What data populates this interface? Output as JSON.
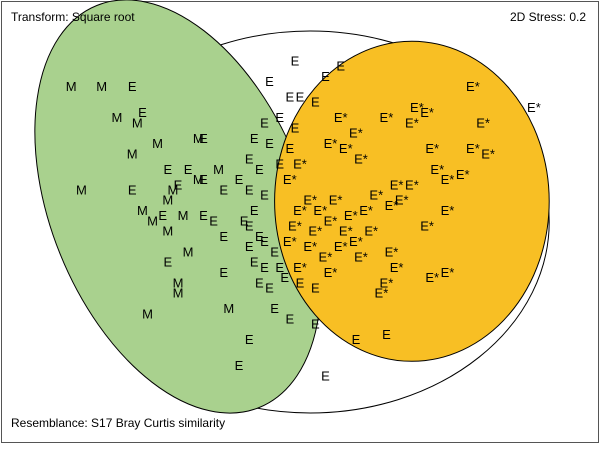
{
  "chart_data": {
    "type": "scatter",
    "annotations": {
      "transform": "Transform: Square root",
      "stress": "2D Stress: 0.2",
      "resemblance": "Resemblance: S17 Bray Curtis similarity"
    },
    "colors": {
      "M": "#a9d18e",
      "E*": "#f8bf24",
      "all": "#ffffff",
      "outline": "#000000"
    },
    "groups": [
      {
        "name": "M",
        "fill": "#a9d18e"
      },
      {
        "name": "E*",
        "fill": "#f8bf24"
      },
      {
        "name": "E",
        "fill": "none"
      }
    ],
    "points": [
      {
        "label": "M",
        "x": -2.3,
        "y": 1.4
      },
      {
        "label": "M",
        "x": -2.0,
        "y": 1.4
      },
      {
        "label": "E",
        "x": -1.7,
        "y": 1.4
      },
      {
        "label": "M",
        "x": -1.85,
        "y": 1.1
      },
      {
        "label": "E",
        "x": -1.6,
        "y": 1.15
      },
      {
        "label": "M",
        "x": -1.65,
        "y": 1.05
      },
      {
        "label": "M",
        "x": -1.45,
        "y": 0.85
      },
      {
        "label": "M",
        "x": -1.05,
        "y": 0.9
      },
      {
        "label": "E",
        "x": -1.0,
        "y": 0.9
      },
      {
        "label": "M",
        "x": -1.7,
        "y": 0.75
      },
      {
        "label": "E",
        "x": -1.35,
        "y": 0.6
      },
      {
        "label": "E",
        "x": -1.15,
        "y": 0.6
      },
      {
        "label": "M",
        "x": -0.85,
        "y": 0.6
      },
      {
        "label": "M",
        "x": -1.05,
        "y": 0.5
      },
      {
        "label": "E",
        "x": -1.0,
        "y": 0.5
      },
      {
        "label": "E",
        "x": -0.8,
        "y": 0.4
      },
      {
        "label": "M",
        "x": -2.2,
        "y": 0.4
      },
      {
        "label": "E",
        "x": -1.7,
        "y": 0.4
      },
      {
        "label": "M",
        "x": -1.3,
        "y": 0.4
      },
      {
        "label": "E",
        "x": -1.25,
        "y": 0.45
      },
      {
        "label": "M",
        "x": -1.35,
        "y": 0.3
      },
      {
        "label": "M",
        "x": -1.6,
        "y": 0.2
      },
      {
        "label": "E",
        "x": -1.4,
        "y": 0.15
      },
      {
        "label": "M",
        "x": -1.5,
        "y": 0.1
      },
      {
        "label": "M",
        "x": -1.2,
        "y": 0.15
      },
      {
        "label": "E",
        "x": -1.0,
        "y": 0.15
      },
      {
        "label": "E",
        "x": -0.9,
        "y": 0.1
      },
      {
        "label": "M",
        "x": -1.35,
        "y": 0.0
      },
      {
        "label": "E",
        "x": -0.55,
        "y": 0.05
      },
      {
        "label": "E",
        "x": -0.8,
        "y": -0.05
      },
      {
        "label": "M",
        "x": -1.15,
        "y": -0.2
      },
      {
        "label": "E",
        "x": -1.35,
        "y": -0.3
      },
      {
        "label": "M",
        "x": -1.25,
        "y": -0.5
      },
      {
        "label": "E",
        "x": -0.8,
        "y": -0.4
      },
      {
        "label": "M",
        "x": -1.25,
        "y": -0.6
      },
      {
        "label": "M",
        "x": -1.55,
        "y": -0.8
      },
      {
        "label": "M",
        "x": -0.75,
        "y": -0.75
      },
      {
        "label": "E",
        "x": -0.55,
        "y": -1.05
      },
      {
        "label": "E",
        "x": -0.65,
        "y": -1.3
      },
      {
        "label": "E",
        "x": -0.1,
        "y": 1.65
      },
      {
        "label": "E",
        "x": 0.35,
        "y": 1.6
      },
      {
        "label": "E",
        "x": 0.2,
        "y": 1.5
      },
      {
        "label": "E",
        "x": -0.35,
        "y": 1.45
      },
      {
        "label": "E",
        "x": -0.15,
        "y": 1.3
      },
      {
        "label": "E",
        "x": -0.05,
        "y": 1.3
      },
      {
        "label": "E",
        "x": 0.1,
        "y": 1.25
      },
      {
        "label": "E",
        "x": -0.4,
        "y": 1.05
      },
      {
        "label": "E",
        "x": -0.25,
        "y": 1.1
      },
      {
        "label": "E",
        "x": -0.1,
        "y": 1.0
      },
      {
        "label": "E",
        "x": -0.5,
        "y": 0.9
      },
      {
        "label": "E",
        "x": -0.35,
        "y": 0.85
      },
      {
        "label": "E",
        "x": -0.15,
        "y": 0.8
      },
      {
        "label": "E",
        "x": -0.55,
        "y": 0.7
      },
      {
        "label": "E",
        "x": -0.45,
        "y": 0.6
      },
      {
        "label": "E",
        "x": -0.25,
        "y": 0.65
      },
      {
        "label": "E",
        "x": -0.65,
        "y": 0.5
      },
      {
        "label": "E",
        "x": -0.55,
        "y": 0.4
      },
      {
        "label": "E",
        "x": -0.4,
        "y": 0.35
      },
      {
        "label": "E",
        "x": -0.5,
        "y": 0.2
      },
      {
        "label": "E",
        "x": -0.6,
        "y": 0.1
      },
      {
        "label": "E",
        "x": -0.45,
        "y": -0.05
      },
      {
        "label": "E",
        "x": -0.55,
        "y": -0.15
      },
      {
        "label": "E",
        "x": -0.4,
        "y": -0.1
      },
      {
        "label": "E",
        "x": -0.3,
        "y": -0.2
      },
      {
        "label": "E",
        "x": -0.5,
        "y": -0.3
      },
      {
        "label": "E",
        "x": -0.4,
        "y": -0.35
      },
      {
        "label": "E",
        "x": -0.25,
        "y": -0.35
      },
      {
        "label": "E",
        "x": -0.45,
        "y": -0.5
      },
      {
        "label": "E",
        "x": -0.35,
        "y": -0.55
      },
      {
        "label": "E",
        "x": -0.2,
        "y": -0.45
      },
      {
        "label": "E",
        "x": -0.05,
        "y": -0.5
      },
      {
        "label": "E",
        "x": 0.1,
        "y": -0.55
      },
      {
        "label": "E",
        "x": -0.3,
        "y": -0.75
      },
      {
        "label": "E",
        "x": -0.15,
        "y": -0.85
      },
      {
        "label": "E",
        "x": 0.1,
        "y": -0.9
      },
      {
        "label": "E",
        "x": 0.5,
        "y": -1.05
      },
      {
        "label": "E",
        "x": 0.8,
        "y": -1.0
      },
      {
        "label": "E",
        "x": 0.2,
        "y": -1.4
      },
      {
        "label": "E*",
        "x": 1.65,
        "y": 1.4
      },
      {
        "label": "E*",
        "x": 2.25,
        "y": 1.2
      },
      {
        "label": "E*",
        "x": 1.1,
        "y": 1.2
      },
      {
        "label": "E*",
        "x": 1.2,
        "y": 1.15
      },
      {
        "label": "E*",
        "x": 0.8,
        "y": 1.1
      },
      {
        "label": "E*",
        "x": 1.05,
        "y": 1.05
      },
      {
        "label": "E*",
        "x": 1.75,
        "y": 1.05
      },
      {
        "label": "E*",
        "x": 0.35,
        "y": 1.1
      },
      {
        "label": "E*",
        "x": 0.5,
        "y": 0.95
      },
      {
        "label": "E*",
        "x": 0.25,
        "y": 0.85
      },
      {
        "label": "E*",
        "x": 0.4,
        "y": 0.8
      },
      {
        "label": "E*",
        "x": 1.25,
        "y": 0.8
      },
      {
        "label": "E*",
        "x": 1.65,
        "y": 0.8
      },
      {
        "label": "E*",
        "x": 1.8,
        "y": 0.75
      },
      {
        "label": "E*",
        "x": -0.05,
        "y": 0.65
      },
      {
        "label": "E*",
        "x": 0.55,
        "y": 0.7
      },
      {
        "label": "E*",
        "x": 1.3,
        "y": 0.6
      },
      {
        "label": "E*",
        "x": 1.55,
        "y": 0.55
      },
      {
        "label": "E*",
        "x": 1.4,
        "y": 0.5
      },
      {
        "label": "E*",
        "x": -0.15,
        "y": 0.5
      },
      {
        "label": "E*",
        "x": 1.05,
        "y": 0.45
      },
      {
        "label": "E*",
        "x": 0.9,
        "y": 0.45
      },
      {
        "label": "E*",
        "x": 0.7,
        "y": 0.35
      },
      {
        "label": "E*",
        "x": 0.95,
        "y": 0.3
      },
      {
        "label": "E*",
        "x": 0.3,
        "y": 0.3
      },
      {
        "label": "E*",
        "x": 0.05,
        "y": 0.3
      },
      {
        "label": "E*",
        "x": 0.85,
        "y": 0.25
      },
      {
        "label": "E*",
        "x": -0.05,
        "y": 0.2
      },
      {
        "label": "E*",
        "x": 0.15,
        "y": 0.2
      },
      {
        "label": "E*",
        "x": 0.45,
        "y": 0.15
      },
      {
        "label": "E*",
        "x": 0.6,
        "y": 0.2
      },
      {
        "label": "E*",
        "x": 0.25,
        "y": 0.1
      },
      {
        "label": "E*",
        "x": 1.4,
        "y": 0.2
      },
      {
        "label": "E*",
        "x": 1.2,
        "y": 0.05
      },
      {
        "label": "E*",
        "x": -0.1,
        "y": 0.05
      },
      {
        "label": "E*",
        "x": 0.1,
        "y": 0.0
      },
      {
        "label": "E*",
        "x": 0.4,
        "y": 0.0
      },
      {
        "label": "E*",
        "x": 0.65,
        "y": 0.0
      },
      {
        "label": "E*",
        "x": -0.15,
        "y": -0.1
      },
      {
        "label": "E*",
        "x": 0.05,
        "y": -0.15
      },
      {
        "label": "E*",
        "x": 0.35,
        "y": -0.15
      },
      {
        "label": "E*",
        "x": 0.5,
        "y": -0.1
      },
      {
        "label": "E*",
        "x": 0.2,
        "y": -0.25
      },
      {
        "label": "E*",
        "x": 0.55,
        "y": -0.25
      },
      {
        "label": "E*",
        "x": 0.85,
        "y": -0.2
      },
      {
        "label": "E*",
        "x": -0.05,
        "y": -0.35
      },
      {
        "label": "E*",
        "x": 0.25,
        "y": -0.4
      },
      {
        "label": "E*",
        "x": 0.9,
        "y": -0.35
      },
      {
        "label": "E*",
        "x": 1.4,
        "y": -0.4
      },
      {
        "label": "E*",
        "x": 1.25,
        "y": -0.45
      },
      {
        "label": "E*",
        "x": 0.8,
        "y": -0.5
      },
      {
        "label": "E*",
        "x": 0.75,
        "y": -0.6
      }
    ],
    "ellipses": [
      {
        "name": "all",
        "cx": 0.05,
        "cy": 0.1,
        "rx": 2.35,
        "ry": 1.85,
        "angle": 0,
        "fill": "#ffffff"
      },
      {
        "name": "M",
        "cx": -1.25,
        "cy": 0.25,
        "rx": 1.25,
        "ry": 2.1,
        "angle": -22,
        "fill": "#a9d18e"
      },
      {
        "name": "E*",
        "cx": 1.05,
        "cy": 0.3,
        "rx": 1.35,
        "ry": 1.55,
        "angle": 0,
        "fill": "#f8bf24"
      }
    ],
    "xlim": [
      -3.0,
      2.9
    ],
    "ylim": [
      -2.05,
      2.25
    ],
    "grid": false
  }
}
